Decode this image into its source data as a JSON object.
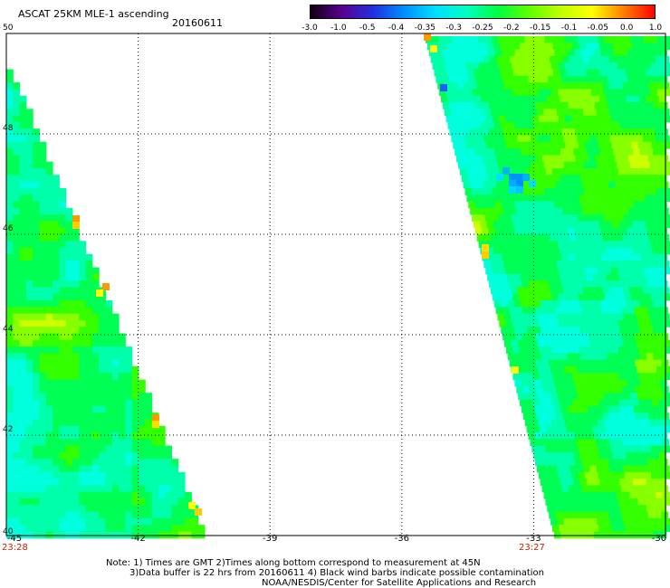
{
  "header": {
    "title": "ASCAT 25KM MLE-1 ascending",
    "date": "20160611"
  },
  "colorbar": {
    "ticks": [
      "-3.0",
      "-1.0",
      "-0.5",
      "-0.4",
      "-0.35",
      "-0.3",
      "-0.25",
      "-0.2",
      "-0.15",
      "-0.1",
      "-0.05",
      "0.0",
      "1.0"
    ],
    "colors": [
      "#100010",
      "#5a0090",
      "#2030e0",
      "#0090ff",
      "#00e0ff",
      "#00ffc0",
      "#00ff40",
      "#60ff00",
      "#c0ff00",
      "#ffff00",
      "#ff8000",
      "#ff0000"
    ]
  },
  "map": {
    "lat_labels": [
      "50",
      "48",
      "46",
      "44",
      "42",
      "40"
    ],
    "lon_labels": [
      "-45",
      "-42",
      "-39",
      "-36",
      "-33",
      "-30"
    ],
    "time_labels": [
      "23:28",
      "23:27"
    ],
    "lat_range": [
      40,
      50
    ],
    "lon_range": [
      -45,
      -30
    ]
  },
  "footer": {
    "line1": "Note: 1) Times are GMT 2)Times along bottom correspond to measurement at 45N",
    "line2": "3)Data buffer is 22 hrs from 20160611 4) Black wind barbs indicate possible contamination",
    "line3": "NOAA/NESDIS/Center for Satellite Applications and Research"
  }
}
